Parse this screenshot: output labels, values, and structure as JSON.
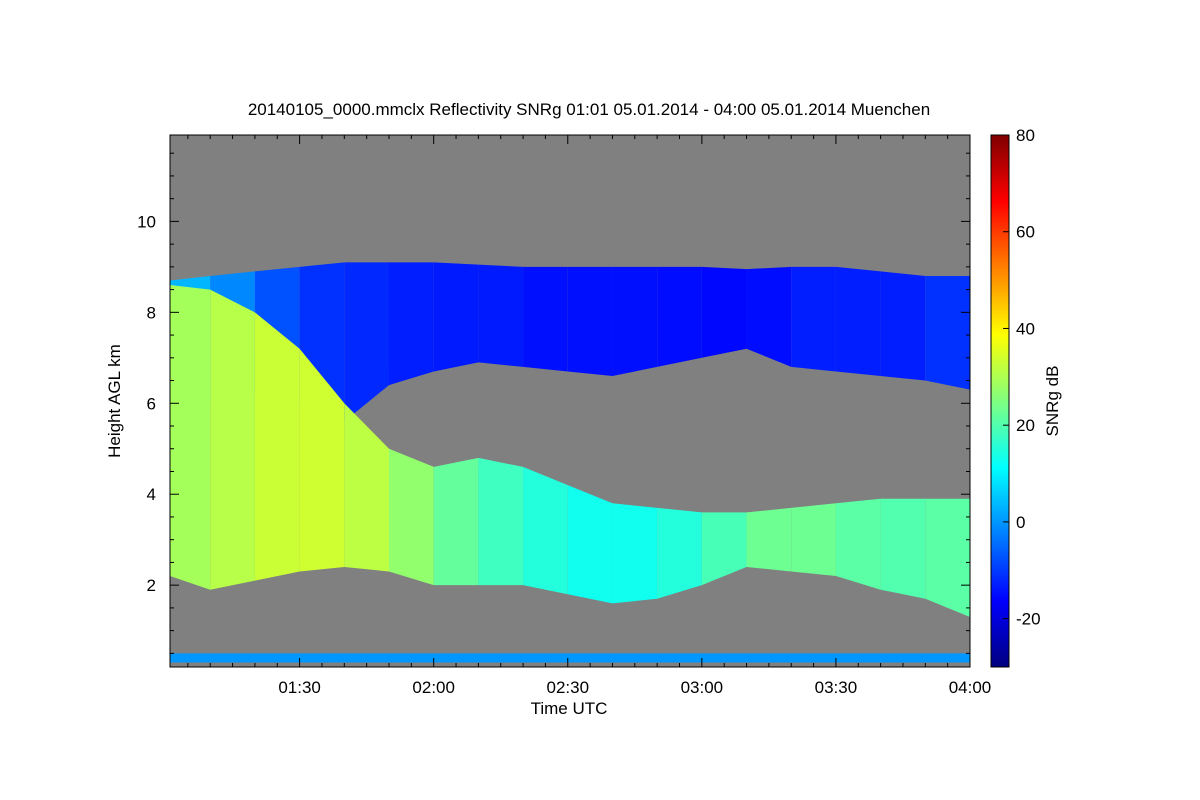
{
  "chart_data": {
    "type": "heatmap",
    "title": "20140105_0000.mmclx Reflectivity SNRg   01:01 05.01.2014 - 04:00 05.01.2014 Muenchen",
    "xlabel": "Time UTC",
    "ylabel": "Height AGL km",
    "colorbar_label": "SNRg dB",
    "xlim_minutes_utc": [
      61,
      240
    ],
    "ylim_km": [
      0.2,
      11.9
    ],
    "x_ticks": [
      {
        "label": "01:30",
        "value": 90
      },
      {
        "label": "02:00",
        "value": 120
      },
      {
        "label": "02:30",
        "value": 150
      },
      {
        "label": "03:00",
        "value": 180
      },
      {
        "label": "03:30",
        "value": 210
      },
      {
        "label": "04:00",
        "value": 240
      }
    ],
    "y_ticks": [
      {
        "label": "2",
        "value": 2
      },
      {
        "label": "4",
        "value": 4
      },
      {
        "label": "6",
        "value": 6
      },
      {
        "label": "8",
        "value": 8
      },
      {
        "label": "10",
        "value": 10
      }
    ],
    "colorbar_range": [
      -30,
      80
    ],
    "colorbar_ticks": [
      {
        "label": "-20",
        "value": -20
      },
      {
        "label": "0",
        "value": 0
      },
      {
        "label": "20",
        "value": 20
      },
      {
        "label": "40",
        "value": 40
      },
      {
        "label": "60",
        "value": 60
      },
      {
        "label": "80",
        "value": 80
      }
    ],
    "colormap": [
      "#00007f",
      "#0000ff",
      "#0080ff",
      "#00ffff",
      "#80ff80",
      "#ffff00",
      "#ff8000",
      "#ff0000",
      "#7f0000"
    ],
    "no_signal_color": "#808080",
    "upper_layer": {
      "description_minutes": [
        61,
        240
      ],
      "time": [
        61,
        70,
        80,
        90,
        100,
        110,
        120,
        130,
        140,
        150,
        160,
        170,
        180,
        190,
        200,
        210,
        220,
        230,
        240
      ],
      "top_km": [
        8.7,
        8.8,
        8.9,
        9.0,
        9.1,
        9.1,
        9.1,
        9.05,
        9.0,
        9.0,
        9.0,
        9.0,
        9.0,
        8.95,
        9.0,
        9.0,
        8.9,
        8.8,
        8.8
      ],
      "bottom_km": [
        6.0,
        6.0,
        6.2,
        6.0,
        5.6,
        6.4,
        6.7,
        6.9,
        6.8,
        6.7,
        6.6,
        6.8,
        7.0,
        7.2,
        6.8,
        6.7,
        6.6,
        6.5,
        6.3
      ],
      "snr_db": [
        5,
        2,
        -5,
        -10,
        -12,
        -12,
        -14,
        -13,
        -14,
        -15,
        -14,
        -15,
        -15,
        -16,
        -14,
        -12,
        -14,
        -12,
        -10
      ]
    },
    "lower_layer": {
      "time": [
        61,
        70,
        80,
        90,
        100,
        110,
        120,
        130,
        140,
        150,
        160,
        170,
        180,
        190,
        200,
        210,
        220,
        230,
        240
      ],
      "top_km": [
        8.6,
        8.5,
        8.0,
        7.2,
        6.0,
        5.0,
        4.6,
        4.8,
        4.6,
        4.2,
        3.8,
        3.7,
        3.6,
        3.6,
        3.7,
        3.8,
        3.9,
        3.9,
        3.9
      ],
      "bottom_km": [
        2.2,
        1.9,
        2.1,
        2.3,
        2.4,
        2.3,
        2.0,
        2.0,
        2.0,
        1.8,
        1.6,
        1.7,
        2.0,
        2.4,
        2.3,
        2.2,
        1.9,
        1.7,
        1.3
      ],
      "snr_db": [
        28,
        30,
        32,
        34,
        33,
        30,
        24,
        20,
        16,
        14,
        12,
        14,
        16,
        22,
        24,
        22,
        20,
        20,
        22
      ]
    },
    "surface_band": {
      "height_km": [
        0.3,
        0.5
      ],
      "snr_db": 0
    }
  }
}
